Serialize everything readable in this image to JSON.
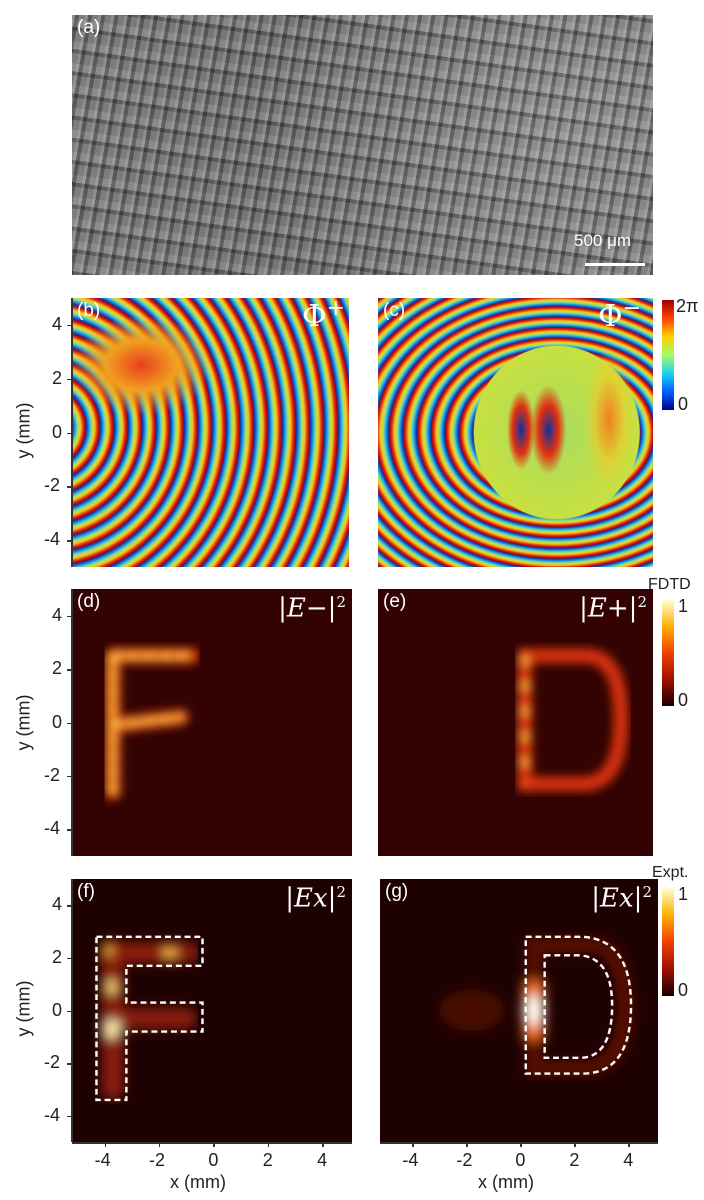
{
  "panel_a": {
    "label": "(a)",
    "scale_bar": "500 μm"
  },
  "panel_b": {
    "label": "(b)",
    "annotation": "Φ",
    "annotation_sup": "+"
  },
  "panel_c": {
    "label": "(c)",
    "annotation": "Φ",
    "annotation_sup": "−"
  },
  "panel_d": {
    "label": "(d)",
    "annotation": "|E−|",
    "annotation_sup": "2"
  },
  "panel_e": {
    "label": "(e)",
    "annotation": "|E+|",
    "annotation_sup": "2"
  },
  "panel_f": {
    "label": "(f)",
    "annotation": "|Ex|",
    "annotation_sup": "2"
  },
  "panel_g": {
    "label": "(g)",
    "annotation": "|Ex|",
    "annotation_sup": "2"
  },
  "colorbar_phase": {
    "max": "2π",
    "min": "0",
    "colormap": "jet"
  },
  "colorbar_fdtd": {
    "title": "FDTD",
    "max": "1",
    "min": "0",
    "colormap": "hot"
  },
  "colorbar_expt": {
    "title": "Expt.",
    "max": "1",
    "min": "0",
    "colormap": "hot"
  },
  "axes": {
    "ylabel": "y (mm)",
    "xlabel": "x (mm)",
    "y_ticks": [
      "4",
      "2",
      "0",
      "-2",
      "-4"
    ],
    "x_ticks": [
      "-4",
      "-2",
      "0",
      "2",
      "4"
    ],
    "x_range": [
      -5.2,
      5.1
    ],
    "y_range": [
      -5,
      5
    ]
  },
  "colors": {
    "heat_bg": "#330303",
    "dashed_outline": "#ffffff"
  }
}
